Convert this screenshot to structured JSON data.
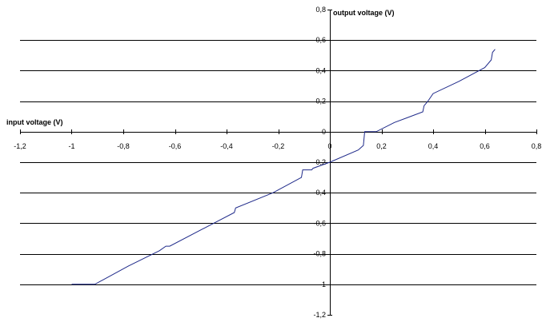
{
  "chart_data": {
    "type": "line",
    "xlabel": "input voltage (V)",
    "ylabel": "output voltage (V)",
    "xlim": [
      -1.2,
      0.8
    ],
    "ylim": [
      -1.2,
      0.8
    ],
    "x_ticks": [
      "-1,2",
      "-1",
      "-0,8",
      "-0,6",
      "-0,4",
      "-0,2",
      "0",
      "0,2",
      "0,4",
      "0,6",
      "0,8"
    ],
    "y_ticks": [
      "0,8",
      "0,6",
      "0,4",
      "0,2",
      "0",
      "-0,2",
      "-0,4",
      "-0,6",
      "-0,8",
      "-1",
      "-1,2"
    ],
    "grid": "horizontal major gridlines",
    "colors": {
      "series": "#1f2a8a",
      "grid": "#000000"
    },
    "series": [
      {
        "x": [
          -1.0,
          -0.91,
          -0.78,
          -0.66,
          -0.635,
          -0.62,
          -0.45,
          -0.37,
          -0.365,
          -0.22,
          -0.11,
          -0.105,
          -0.07,
          -0.065,
          0.0,
          0.11,
          0.13,
          0.135,
          0.18,
          0.25,
          0.36,
          0.365,
          0.38,
          0.4,
          0.5,
          0.6,
          0.625,
          0.63,
          0.64
        ],
        "y": [
          -1.0,
          -1.0,
          -0.88,
          -0.78,
          -0.75,
          -0.75,
          -0.6,
          -0.53,
          -0.5,
          -0.4,
          -0.3,
          -0.25,
          -0.25,
          -0.24,
          -0.2,
          -0.12,
          -0.09,
          0.0,
          0.0,
          0.06,
          0.13,
          0.17,
          0.2,
          0.25,
          0.33,
          0.42,
          0.47,
          0.52,
          0.54
        ]
      }
    ]
  }
}
